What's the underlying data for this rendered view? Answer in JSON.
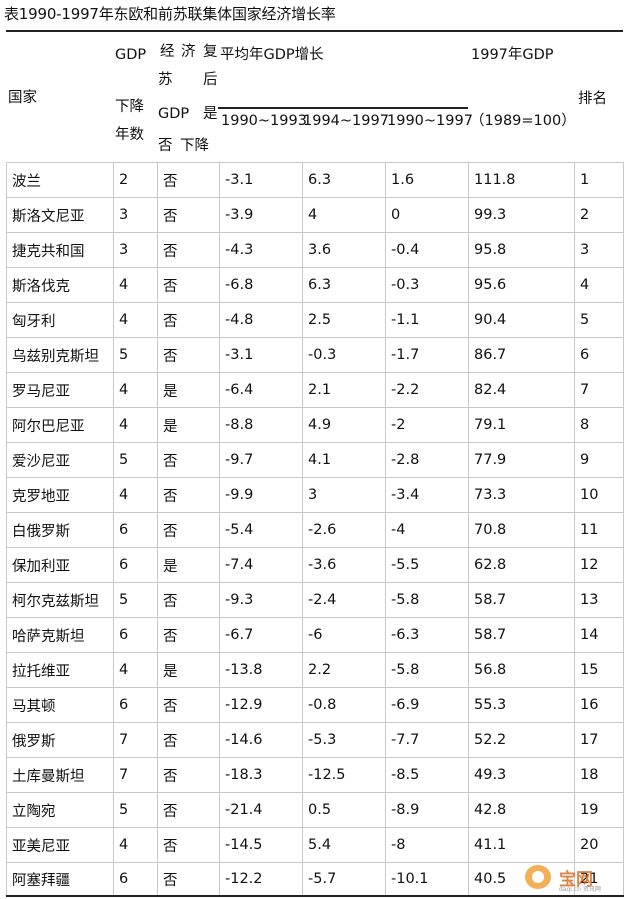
{
  "title": "表1990-1997年东欧和前苏联集体国家经济增长率",
  "header": {
    "country": "国家",
    "gdp_decline_years": [
      "GDP",
      "下降",
      "年数"
    ],
    "recovery_col1": [
      "经",
      "苏",
      "GDP",
      "否"
    ],
    "recovery_col2": [
      "济",
      "复",
      "后",
      "是",
      "下降"
    ],
    "avg_growth": "平均年GDP增长",
    "period_1": "1990~1993",
    "period_2": "1994~1997",
    "period_3": "1990~1997",
    "gdp1997": "1997年GDP",
    "gdp1997_base": "（1989=100）",
    "rank": "排名"
  },
  "rows": [
    {
      "country": "波兰",
      "years": "2",
      "recover": "否",
      "p1": "-3.1",
      "p2": "6.3",
      "p3": "1.6",
      "gdp": "111.8",
      "rank": "1"
    },
    {
      "country": "斯洛文尼亚",
      "years": "3",
      "recover": "否",
      "p1": "-3.9",
      "p2": "4",
      "p3": "0",
      "gdp": "99.3",
      "rank": "2"
    },
    {
      "country": "捷克共和国",
      "years": "3",
      "recover": "否",
      "p1": "-4.3",
      "p2": "3.6",
      "p3": "-0.4",
      "gdp": "95.8",
      "rank": "3"
    },
    {
      "country": "斯洛伐克",
      "years": "4",
      "recover": "否",
      "p1": "-6.8",
      "p2": "6.3",
      "p3": "-0.3",
      "gdp": "95.6",
      "rank": "4"
    },
    {
      "country": "匈牙利",
      "years": "4",
      "recover": "否",
      "p1": "-4.8",
      "p2": "2.5",
      "p3": "-1.1",
      "gdp": "90.4",
      "rank": "5"
    },
    {
      "country": "乌兹别克斯坦",
      "years": "5",
      "recover": "否",
      "p1": "-3.1",
      "p2": "-0.3",
      "p3": "-1.7",
      "gdp": "86.7",
      "rank": "6"
    },
    {
      "country": "罗马尼亚",
      "years": "4",
      "recover": "是",
      "p1": "-6.4",
      "p2": "2.1",
      "p3": "-2.2",
      "gdp": "82.4",
      "rank": "7"
    },
    {
      "country": "阿尔巴尼亚",
      "years": "4",
      "recover": "是",
      "p1": "-8.8",
      "p2": "4.9",
      "p3": "-2",
      "gdp": "79.1",
      "rank": "8"
    },
    {
      "country": "爱沙尼亚",
      "years": "5",
      "recover": "否",
      "p1": "-9.7",
      "p2": "4.1",
      "p3": "-2.8",
      "gdp": "77.9",
      "rank": "9"
    },
    {
      "country": "克罗地亚",
      "years": "4",
      "recover": "否",
      "p1": "-9.9",
      "p2": "3",
      "p3": "-3.4",
      "gdp": "73.3",
      "rank": "10"
    },
    {
      "country": "白俄罗斯",
      "years": "6",
      "recover": "否",
      "p1": "-5.4",
      "p2": "-2.6",
      "p3": "-4",
      "gdp": "70.8",
      "rank": "11"
    },
    {
      "country": "保加利亚",
      "years": "6",
      "recover": "是",
      "p1": "-7.4",
      "p2": "-3.6",
      "p3": "-5.5",
      "gdp": "62.8",
      "rank": "12"
    },
    {
      "country": "柯尔克兹斯坦",
      "years": "5",
      "recover": "否",
      "p1": "-9.3",
      "p2": "-2.4",
      "p3": "-5.8",
      "gdp": "58.7",
      "rank": "13"
    },
    {
      "country": "哈萨克斯坦",
      "years": "6",
      "recover": "否",
      "p1": "-6.7",
      "p2": "-6",
      "p3": "-6.3",
      "gdp": "58.7",
      "rank": "14"
    },
    {
      "country": "拉托维亚",
      "years": "4",
      "recover": "是",
      "p1": "-13.8",
      "p2": "2.2",
      "p3": "-5.8",
      "gdp": "56.8",
      "rank": "15"
    },
    {
      "country": "马其顿",
      "years": "6",
      "recover": "否",
      "p1": "-12.9",
      "p2": "-0.8",
      "p3": "-6.9",
      "gdp": "55.3",
      "rank": "16"
    },
    {
      "country": "俄罗斯",
      "years": "7",
      "recover": "否",
      "p1": "-14.6",
      "p2": "-5.3",
      "p3": "-7.7",
      "gdp": "52.2",
      "rank": "17"
    },
    {
      "country": "土库曼斯坦",
      "years": "7",
      "recover": "否",
      "p1": "-18.3",
      "p2": "-12.5",
      "p3": "-8.5",
      "gdp": "49.3",
      "rank": "18"
    },
    {
      "country": "立陶宛",
      "years": "5",
      "recover": "否",
      "p1": "-21.4",
      "p2": "0.5",
      "p3": "-8.9",
      "gdp": "42.8",
      "rank": "19"
    },
    {
      "country": "亚美尼亚",
      "years": "4",
      "recover": "否",
      "p1": "-14.5",
      "p2": "5.4",
      "p3": "-8",
      "gdp": "41.1",
      "rank": "20"
    },
    {
      "country": "阿塞拜疆",
      "years": "6",
      "recover": "否",
      "p1": "-12.2",
      "p2": "-5.7",
      "p3": "-10.1",
      "gdp": "40.5",
      "rank": "21"
    }
  ],
  "watermark": {
    "text": "宝网",
    "url": "daqi.cn 资讯网"
  }
}
